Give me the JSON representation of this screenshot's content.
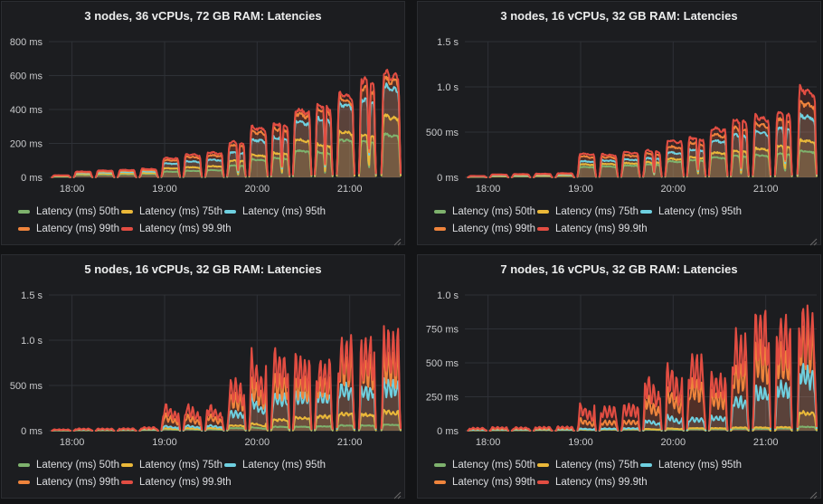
{
  "page": {
    "bg": "#131416",
    "panel_bg": "#1c1d20",
    "panel_border": "#2b2d31",
    "grid_color": "#2e3136",
    "axis_text_color": "#c9cacc",
    "title_color": "#eceded",
    "resize_handle_color": "#6a6a6a"
  },
  "series_meta": [
    {
      "key": "p50",
      "label": "Latency (ms) 50th",
      "color": "#7EB26D"
    },
    {
      "key": "p75",
      "label": "Latency (ms) 75th",
      "color": "#EAB839"
    },
    {
      "key": "p95",
      "label": "Latency (ms) 95th",
      "color": "#6ED0E0"
    },
    {
      "key": "p99",
      "label": "Latency (ms) 99th",
      "color": "#EF843C"
    },
    {
      "key": "p999",
      "label": "Latency (ms) 99.9th",
      "color": "#E24D42"
    }
  ],
  "time_axis": {
    "end_min": 228,
    "ticks": [
      {
        "m": 15,
        "label": "18:00"
      },
      {
        "m": 75,
        "label": "19:00"
      },
      {
        "m": 135,
        "label": "20:00"
      },
      {
        "m": 195,
        "label": "21:00"
      }
    ]
  },
  "burst_minutes": [
    {
      "s": 2,
      "w": 12
    },
    {
      "s": 16.2,
      "w": 12
    },
    {
      "s": 30.4,
      "w": 12
    },
    {
      "s": 44.6,
      "w": 12
    },
    {
      "s": 58.8,
      "w": 12
    },
    {
      "s": 73,
      "w": 12
    },
    {
      "s": 87.2,
      "w": 12
    },
    {
      "s": 101.4,
      "w": 12
    },
    {
      "s": 115.6,
      "w": 12
    },
    {
      "s": 129.8,
      "w": 12
    },
    {
      "s": 144,
      "w": 12
    },
    {
      "s": 158.2,
      "w": 12
    },
    {
      "s": 172.4,
      "w": 11.5
    },
    {
      "s": 186.6,
      "w": 11.5
    },
    {
      "s": 201,
      "w": 11
    },
    {
      "s": 215.5,
      "w": 12.5
    }
  ],
  "chart_data": [
    {
      "type": "area",
      "title": "3 nodes, 36 vCPUs, 72 GB RAM: Latencies",
      "style": "smooth",
      "y_top": 800,
      "y_ticks": [
        {
          "v": 0,
          "label": "0 ms"
        },
        {
          "v": 200,
          "label": "200 ms"
        },
        {
          "v": 400,
          "label": "400 ms"
        },
        {
          "v": 600,
          "label": "600 ms"
        },
        {
          "v": 800,
          "label": "800 ms"
        }
      ],
      "bursts": [
        {
          "v": [
            4,
            6,
            9,
            11,
            13
          ]
        },
        {
          "v": [
            15,
            20,
            26,
            31,
            36
          ]
        },
        {
          "v": [
            17,
            23,
            30,
            36,
            42
          ]
        },
        {
          "v": [
            19,
            25,
            33,
            40,
            46
          ]
        },
        {
          "v": [
            21,
            27,
            36,
            44,
            52
          ]
        },
        {
          "v": [
            35,
            55,
            85,
            105,
            118
          ]
        },
        {
          "v": [
            40,
            62,
            98,
            125,
            140
          ]
        },
        {
          "v": [
            44,
            68,
            108,
            135,
            152
          ]
        },
        {
          "v": [
            72,
            102,
            152,
            195,
            215
          ],
          "dip": true
        },
        {
          "v": [
            108,
            135,
            228,
            278,
            305
          ]
        },
        {
          "v": [
            118,
            148,
            242,
            298,
            328
          ],
          "dip": true
        },
        {
          "v": [
            162,
            228,
            340,
            388,
            412
          ]
        },
        {
          "v": [
            152,
            198,
            355,
            412,
            438
          ],
          "dip": true
        },
        {
          "v": [
            228,
            278,
            448,
            478,
            512
          ]
        },
        {
          "v": [
            218,
            258,
            472,
            542,
            598
          ],
          "dip": true
        },
        {
          "v": [
            258,
            368,
            548,
            598,
            632
          ]
        }
      ]
    },
    {
      "type": "area",
      "title": "3 nodes, 16 vCPUs, 32 GB RAM: Latencies",
      "style": "smooth",
      "y_top": 1500,
      "y_ticks": [
        {
          "v": 0,
          "label": "0 ms"
        },
        {
          "v": 500,
          "label": "500 ms"
        },
        {
          "v": 1000,
          "label": "1.0 s"
        },
        {
          "v": 1500,
          "label": "1.5 s"
        }
      ],
      "bursts": [
        {
          "v": [
            5,
            7,
            10,
            13,
            16
          ]
        },
        {
          "v": [
            12,
            16,
            22,
            28,
            34
          ]
        },
        {
          "v": [
            14,
            18,
            25,
            32,
            38
          ]
        },
        {
          "v": [
            16,
            20,
            28,
            35,
            42
          ]
        },
        {
          "v": [
            18,
            24,
            32,
            40,
            48
          ]
        },
        {
          "v": [
            118,
            148,
            185,
            238,
            272
          ]
        },
        {
          "v": [
            125,
            155,
            192,
            232,
            262
          ]
        },
        {
          "v": [
            135,
            162,
            205,
            252,
            288
          ]
        },
        {
          "v": [
            145,
            172,
            218,
            268,
            302
          ],
          "dip": true
        },
        {
          "v": [
            182,
            212,
            282,
            348,
            418
          ]
        },
        {
          "v": [
            198,
            232,
            318,
            395,
            452
          ],
          "dip": true
        },
        {
          "v": [
            228,
            282,
            418,
            488,
            562
          ]
        },
        {
          "v": [
            242,
            298,
            478,
            558,
            648
          ],
          "dip": true
        },
        {
          "v": [
            252,
            328,
            518,
            608,
            692
          ]
        },
        {
          "v": [
            268,
            355,
            558,
            658,
            742
          ],
          "dip": true
        },
        {
          "v": [
            298,
            418,
            698,
            848,
            1005
          ]
        }
      ]
    },
    {
      "type": "area",
      "title": "5 nodes, 16 vCPUs, 32 GB RAM: Latencies",
      "style": "spiky",
      "y_top": 1500,
      "y_ticks": [
        {
          "v": 0,
          "label": "0 ms"
        },
        {
          "v": 500,
          "label": "500 ms"
        },
        {
          "v": 1000,
          "label": "1.0 s"
        },
        {
          "v": 1500,
          "label": "1.5 s"
        }
      ],
      "bursts": [
        {
          "v": [
            3,
            5,
            8,
            12,
            16
          ]
        },
        {
          "v": [
            5,
            8,
            12,
            18,
            25
          ]
        },
        {
          "v": [
            5,
            8,
            13,
            19,
            26
          ]
        },
        {
          "v": [
            6,
            9,
            14,
            21,
            28
          ]
        },
        {
          "v": [
            8,
            12,
            18,
            28,
            42
          ]
        },
        {
          "v": [
            18,
            30,
            60,
            200,
            330
          ],
          "decay": true
        },
        {
          "v": [
            20,
            32,
            65,
            195,
            320
          ],
          "decay": true
        },
        {
          "v": [
            20,
            35,
            70,
            205,
            325
          ],
          "decay": true
        },
        {
          "v": [
            30,
            60,
            220,
            420,
            560
          ]
        },
        {
          "v": [
            40,
            90,
            400,
            630,
            890
          ],
          "decay": true
        },
        {
          "v": [
            45,
            130,
            410,
            640,
            890
          ]
        },
        {
          "v": [
            45,
            150,
            430,
            600,
            840
          ]
        },
        {
          "v": [
            50,
            170,
            440,
            620,
            800
          ]
        },
        {
          "v": [
            60,
            200,
            530,
            880,
            1060
          ]
        },
        {
          "v": [
            60,
            190,
            520,
            850,
            1080
          ]
        },
        {
          "v": [
            70,
            220,
            560,
            900,
            1140
          ]
        }
      ]
    },
    {
      "type": "area",
      "title": "7 nodes, 16 vCPUs, 32 GB RAM: Latencies",
      "style": "spiky",
      "y_top": 1000,
      "y_ticks": [
        {
          "v": 0,
          "label": "0 ms"
        },
        {
          "v": 250,
          "label": "250 ms"
        },
        {
          "v": 500,
          "label": "500 ms"
        },
        {
          "v": 750,
          "label": "750 ms"
        },
        {
          "v": 1000,
          "label": "1.0 s"
        }
      ],
      "bursts": [
        {
          "v": [
            3,
            5,
            8,
            15,
            22
          ]
        },
        {
          "v": [
            4,
            6,
            10,
            18,
            28
          ]
        },
        {
          "v": [
            4,
            6,
            10,
            18,
            26
          ]
        },
        {
          "v": [
            5,
            7,
            12,
            20,
            30
          ]
        },
        {
          "v": [
            5,
            8,
            12,
            22,
            32
          ]
        },
        {
          "v": [
            8,
            12,
            18,
            95,
            210
          ],
          "decay": true
        },
        {
          "v": [
            8,
            12,
            18,
            75,
            185
          ]
        },
        {
          "v": [
            9,
            13,
            20,
            80,
            200
          ]
        },
        {
          "v": [
            10,
            15,
            90,
            280,
            460
          ],
          "decay": true
        },
        {
          "v": [
            12,
            20,
            120,
            350,
            555
          ],
          "decay": true
        },
        {
          "v": [
            12,
            20,
            100,
            380,
            560
          ]
        },
        {
          "v": [
            12,
            20,
            110,
            300,
            430
          ]
        },
        {
          "v": [
            15,
            25,
            250,
            520,
            725
          ]
        },
        {
          "v": [
            15,
            25,
            330,
            650,
            905
          ]
        },
        {
          "v": [
            18,
            28,
            360,
            650,
            870
          ]
        },
        {
          "v": [
            30,
            140,
            480,
            780,
            930
          ]
        }
      ]
    }
  ]
}
